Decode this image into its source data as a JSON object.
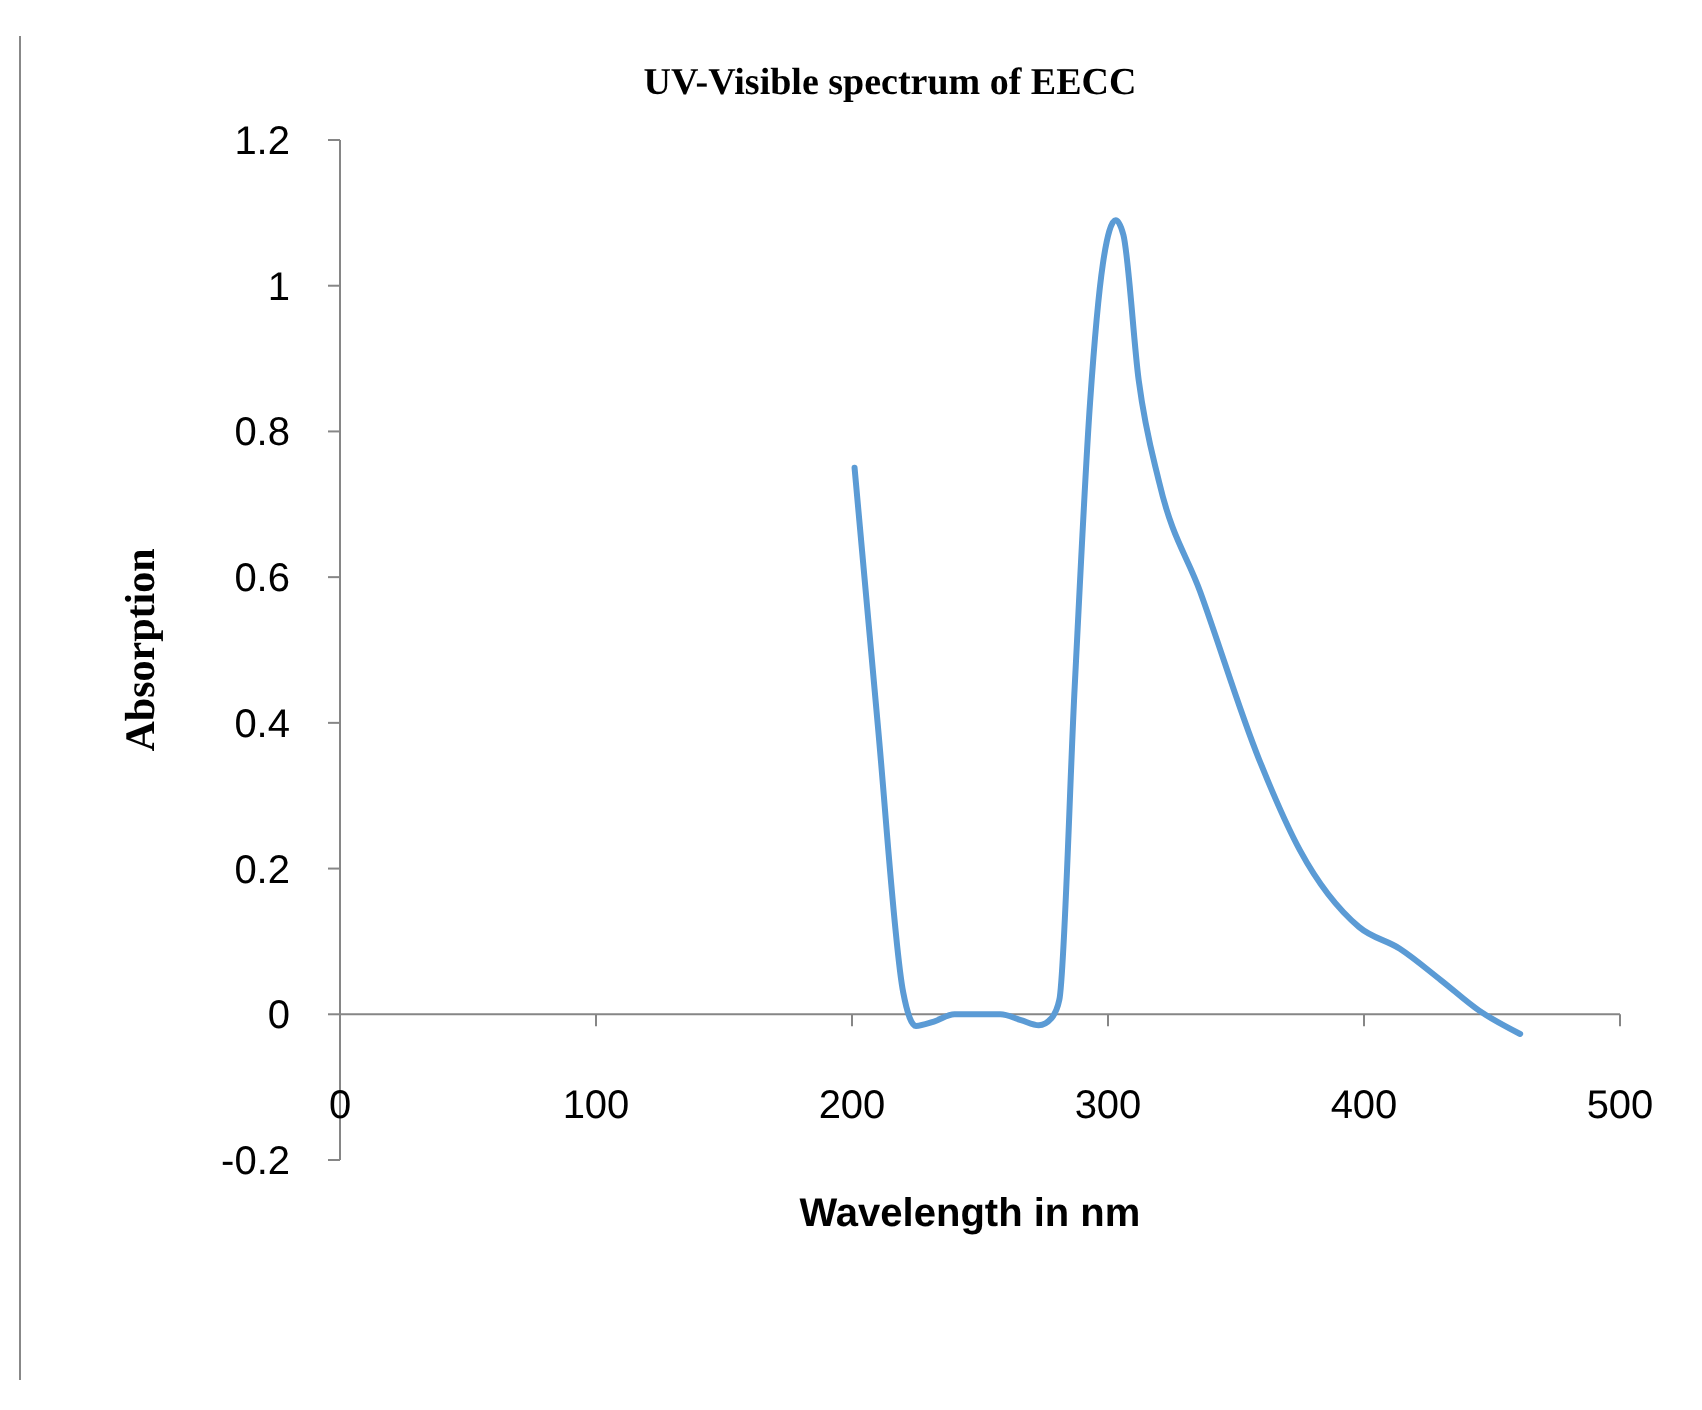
{
  "chart_data": {
    "type": "line",
    "title": "UV-Visible spectrum of EECC",
    "xlabel": "Wavelength in nm",
    "ylabel": "Absorption",
    "x": [
      201,
      210,
      220,
      225,
      232,
      240,
      250,
      258,
      266,
      273,
      278,
      281,
      287,
      293,
      298,
      303,
      306,
      312,
      320,
      336,
      359,
      375,
      398,
      414,
      430,
      445,
      461
    ],
    "series": [
      {
        "color": "#5b9bd5",
        "values": [
          0.75,
          0.4,
          0.03,
          -0.016,
          -0.01,
          0,
          0,
          0,
          -0.008,
          -0.015,
          -0.005,
          0.02,
          0.45,
          0.84,
          1.03,
          1.09,
          1.07,
          0.87,
          0.73,
          0.58,
          0.35,
          0.225,
          0.12,
          0.09,
          0.047,
          0.005,
          -0.027
        ]
      }
    ],
    "xlim": [
      0,
      500
    ],
    "xticks": [
      0,
      100,
      200,
      300,
      400,
      500
    ],
    "ylim": [
      -0.2,
      1.2
    ],
    "yticks": [
      -0.2,
      0,
      0.2,
      0.4,
      0.6,
      0.8,
      1,
      1.2
    ],
    "grid": false,
    "marker": "none",
    "line_style": "solid"
  }
}
